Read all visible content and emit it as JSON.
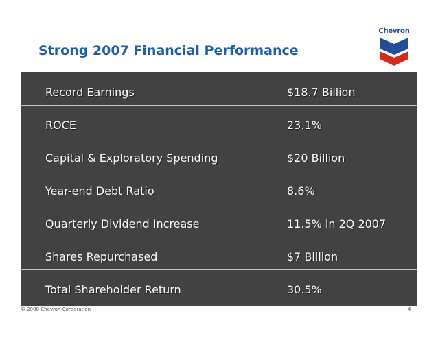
{
  "slide": {
    "title": "Strong 2007 Financial Performance",
    "logo_text": "Chevron",
    "colors": {
      "title": "#1f5fa8",
      "table_background": "#424242",
      "row_text": "#ffffff",
      "logo_blue": "#1f4f99",
      "logo_red": "#d52b1e"
    },
    "rows": [
      {
        "label": "Record Earnings",
        "value": "$18.7 Billion"
      },
      {
        "label": "ROCE",
        "value": "23.1%"
      },
      {
        "label": "Capital & Exploratory Spending",
        "value": "$20 Billion"
      },
      {
        "label": "Year-end Debt Ratio",
        "value": "8.6%"
      },
      {
        "label": "Quarterly Dividend Increase",
        "value": "11.5% in 2Q 2007"
      },
      {
        "label": "Shares Repurchased",
        "value": "$7 Billion"
      },
      {
        "label": "Total Shareholder Return",
        "value": "30.5%"
      }
    ],
    "footer": "© 2008 Chevron Corporation",
    "page_number": "4"
  }
}
